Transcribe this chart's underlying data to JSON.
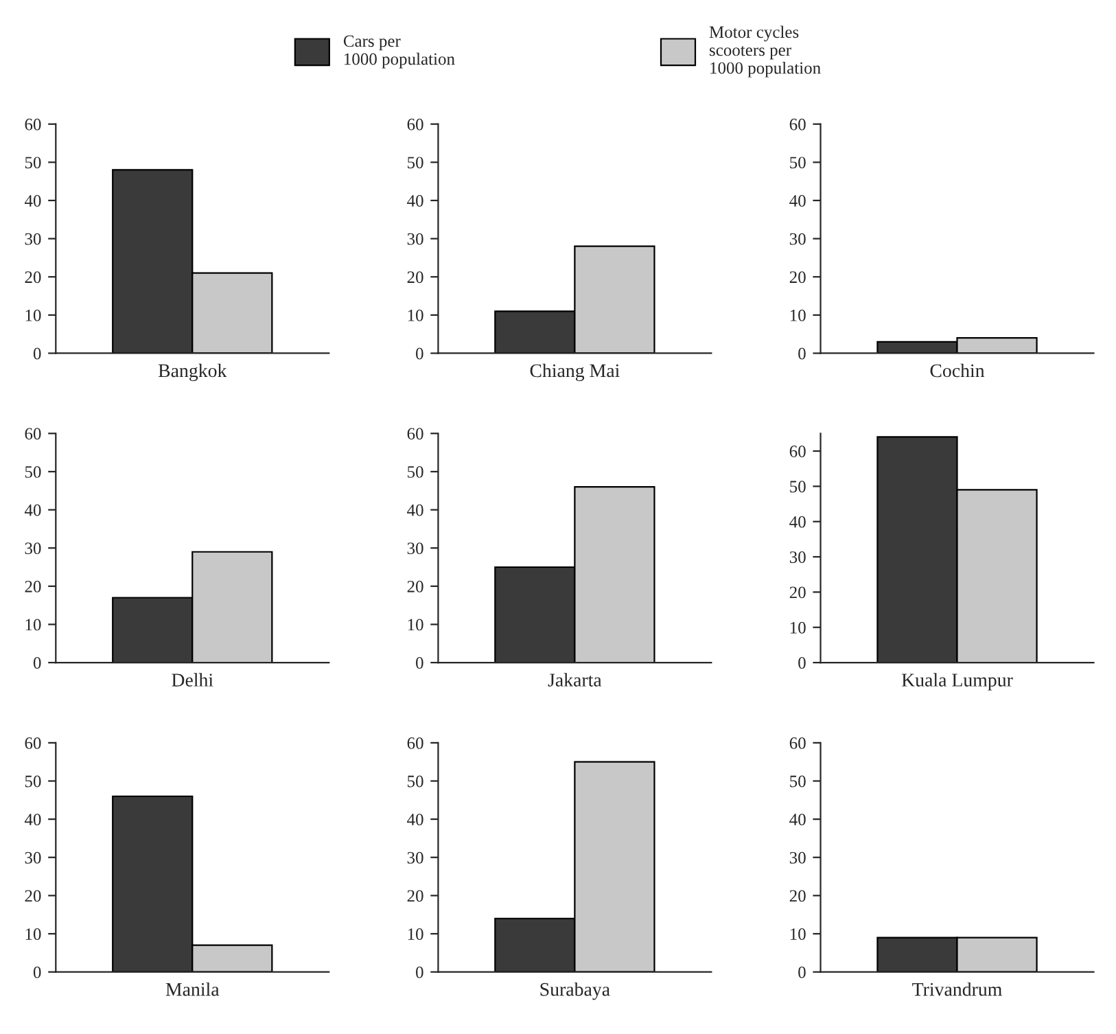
{
  "chart_data": [
    {
      "type": "bar",
      "xlabel": "Bangkok",
      "categories": [
        null
      ],
      "series": [
        {
          "name": "Cars per\n1000 population",
          "color": "#3a3a3a",
          "values": [
            48
          ]
        },
        {
          "name": "Motor cycles\nscooters per\n1000 population",
          "color": "#c8c8c8",
          "values": [
            21
          ]
        }
      ],
      "ylim": [
        0,
        60
      ],
      "yticks": [
        0,
        10,
        20,
        30,
        40,
        50,
        60
      ],
      "legend": "top",
      "grid": false
    },
    {
      "type": "bar",
      "xlabel": "Chiang Mai",
      "categories": [
        null
      ],
      "series": [
        {
          "color": "#3a3a3a",
          "values": [
            11
          ]
        },
        {
          "color": "#c8c8c8",
          "values": [
            28
          ]
        }
      ],
      "ylim": [
        0,
        60
      ],
      "yticks": [
        0,
        10,
        20,
        30,
        40,
        50,
        60
      ],
      "grid": false
    },
    {
      "type": "bar",
      "xlabel": "Cochin",
      "categories": [
        null
      ],
      "series": [
        {
          "color": "#3a3a3a",
          "values": [
            3
          ]
        },
        {
          "color": "#c8c8c8",
          "values": [
            4
          ]
        }
      ],
      "ylim": [
        0,
        60
      ],
      "yticks": [
        0,
        10,
        20,
        30,
        40,
        50,
        60
      ],
      "grid": false
    },
    {
      "type": "bar",
      "xlabel": "Delhi",
      "categories": [
        null
      ],
      "series": [
        {
          "color": "#3a3a3a",
          "values": [
            17
          ]
        },
        {
          "color": "#c8c8c8",
          "values": [
            29
          ]
        }
      ],
      "ylim": [
        0,
        60
      ],
      "yticks": [
        0,
        10,
        20,
        30,
        40,
        50,
        60
      ],
      "grid": false
    },
    {
      "type": "bar",
      "xlabel": "Jakarta",
      "categories": [
        null
      ],
      "series": [
        {
          "color": "#3a3a3a",
          "values": [
            25
          ]
        },
        {
          "color": "#c8c8c8",
          "values": [
            46
          ]
        }
      ],
      "ylim": [
        0,
        60
      ],
      "yticks": [
        0,
        10,
        20,
        30,
        40,
        50,
        60
      ],
      "grid": false
    },
    {
      "type": "bar",
      "xlabel": "Kuala Lumpur",
      "categories": [
        null
      ],
      "series": [
        {
          "color": "#3a3a3a",
          "values": [
            64
          ]
        },
        {
          "color": "#c8c8c8",
          "values": [
            49
          ]
        }
      ],
      "ylim": [
        0,
        65
      ],
      "yticks": [
        0,
        10,
        20,
        30,
        40,
        50,
        60
      ],
      "grid": false
    },
    {
      "type": "bar",
      "xlabel": "Manila",
      "categories": [
        null
      ],
      "series": [
        {
          "color": "#3a3a3a",
          "values": [
            46
          ]
        },
        {
          "color": "#c8c8c8",
          "values": [
            7
          ]
        }
      ],
      "ylim": [
        0,
        60
      ],
      "yticks": [
        0,
        10,
        20,
        30,
        40,
        50,
        60
      ],
      "grid": false
    },
    {
      "type": "bar",
      "xlabel": "Surabaya",
      "categories": [
        null
      ],
      "series": [
        {
          "color": "#3a3a3a",
          "values": [
            14
          ]
        },
        {
          "color": "#c8c8c8",
          "values": [
            55
          ]
        }
      ],
      "ylim": [
        0,
        60
      ],
      "yticks": [
        0,
        10,
        20,
        30,
        40,
        50,
        60
      ],
      "grid": false
    },
    {
      "type": "bar",
      "xlabel": "Trivandrum",
      "categories": [
        null
      ],
      "series": [
        {
          "color": "#3a3a3a",
          "values": [
            9
          ]
        },
        {
          "color": "#c8c8c8",
          "values": [
            9
          ]
        }
      ],
      "ylim": [
        0,
        60
      ],
      "yticks": [
        0,
        10,
        20,
        30,
        40,
        50,
        60
      ],
      "grid": false
    }
  ]
}
